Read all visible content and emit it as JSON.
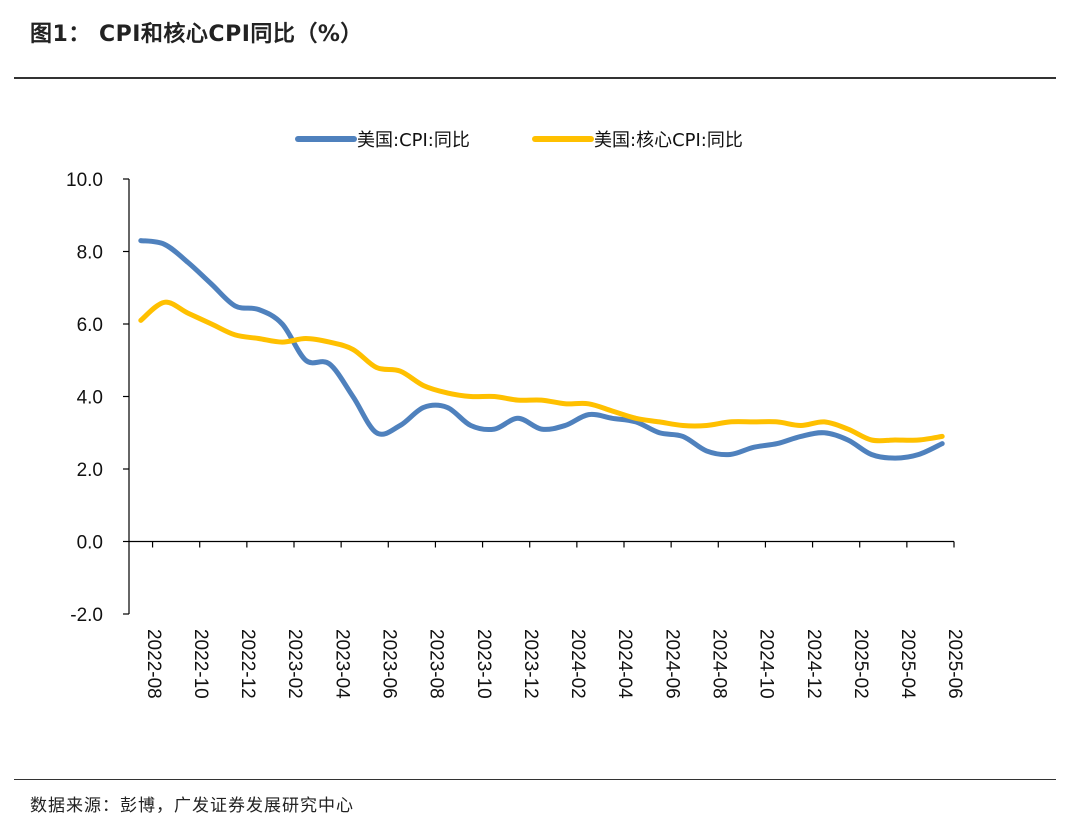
{
  "header": {
    "title": "图1：  CPI和核心CPI同比（%）"
  },
  "footer": {
    "source": "数据来源：彭博，广发证券发展研究中心"
  },
  "chart_data": {
    "type": "line",
    "title": "",
    "xlabel": "",
    "ylabel": "",
    "ylim": [
      -2.0,
      10.0
    ],
    "yticks": [
      "10.0",
      "8.0",
      "6.0",
      "4.0",
      "2.0",
      "0.0",
      "-2.0"
    ],
    "legend_position": "top-center",
    "x": [
      "2022-08",
      "2022-09",
      "2022-10",
      "2022-11",
      "2022-12",
      "2023-01",
      "2023-02",
      "2023-03",
      "2023-04",
      "2023-05",
      "2023-06",
      "2023-07",
      "2023-08",
      "2023-09",
      "2023-10",
      "2023-11",
      "2023-12",
      "2024-01",
      "2024-02",
      "2024-03",
      "2024-04",
      "2024-05",
      "2024-06",
      "2024-07",
      "2024-08",
      "2024-09",
      "2024-10",
      "2024-11",
      "2024-12",
      "2025-01",
      "2025-02",
      "2025-03",
      "2025-04",
      "2025-05",
      "2025-06"
    ],
    "xticks": [
      "2022-08",
      "2022-10",
      "2022-12",
      "2023-02",
      "2023-04",
      "2023-06",
      "2023-08",
      "2023-10",
      "2023-12",
      "2024-02",
      "2024-04",
      "2024-06",
      "2024-08",
      "2024-10",
      "2024-12",
      "2025-02",
      "2025-04",
      "2025-06"
    ],
    "series": [
      {
        "name": "美国:CPI:同比",
        "color": "#4F81BD",
        "values": [
          8.3,
          8.2,
          7.7,
          7.1,
          6.5,
          6.4,
          6.0,
          5.0,
          4.9,
          4.0,
          3.0,
          3.2,
          3.7,
          3.7,
          3.2,
          3.1,
          3.4,
          3.1,
          3.2,
          3.5,
          3.4,
          3.3,
          3.0,
          2.9,
          2.5,
          2.4,
          2.6,
          2.7,
          2.9,
          3.0,
          2.8,
          2.4,
          2.3,
          2.4,
          2.7
        ]
      },
      {
        "name": "美国:核心CPI:同比",
        "color": "#FFC000",
        "values": [
          6.1,
          6.6,
          6.3,
          6.0,
          5.7,
          5.6,
          5.5,
          5.6,
          5.5,
          5.3,
          4.8,
          4.7,
          4.3,
          4.1,
          4.0,
          4.0,
          3.9,
          3.9,
          3.8,
          3.8,
          3.6,
          3.4,
          3.3,
          3.2,
          3.2,
          3.3,
          3.3,
          3.3,
          3.2,
          3.3,
          3.1,
          2.8,
          2.8,
          2.8,
          2.9
        ]
      }
    ]
  }
}
